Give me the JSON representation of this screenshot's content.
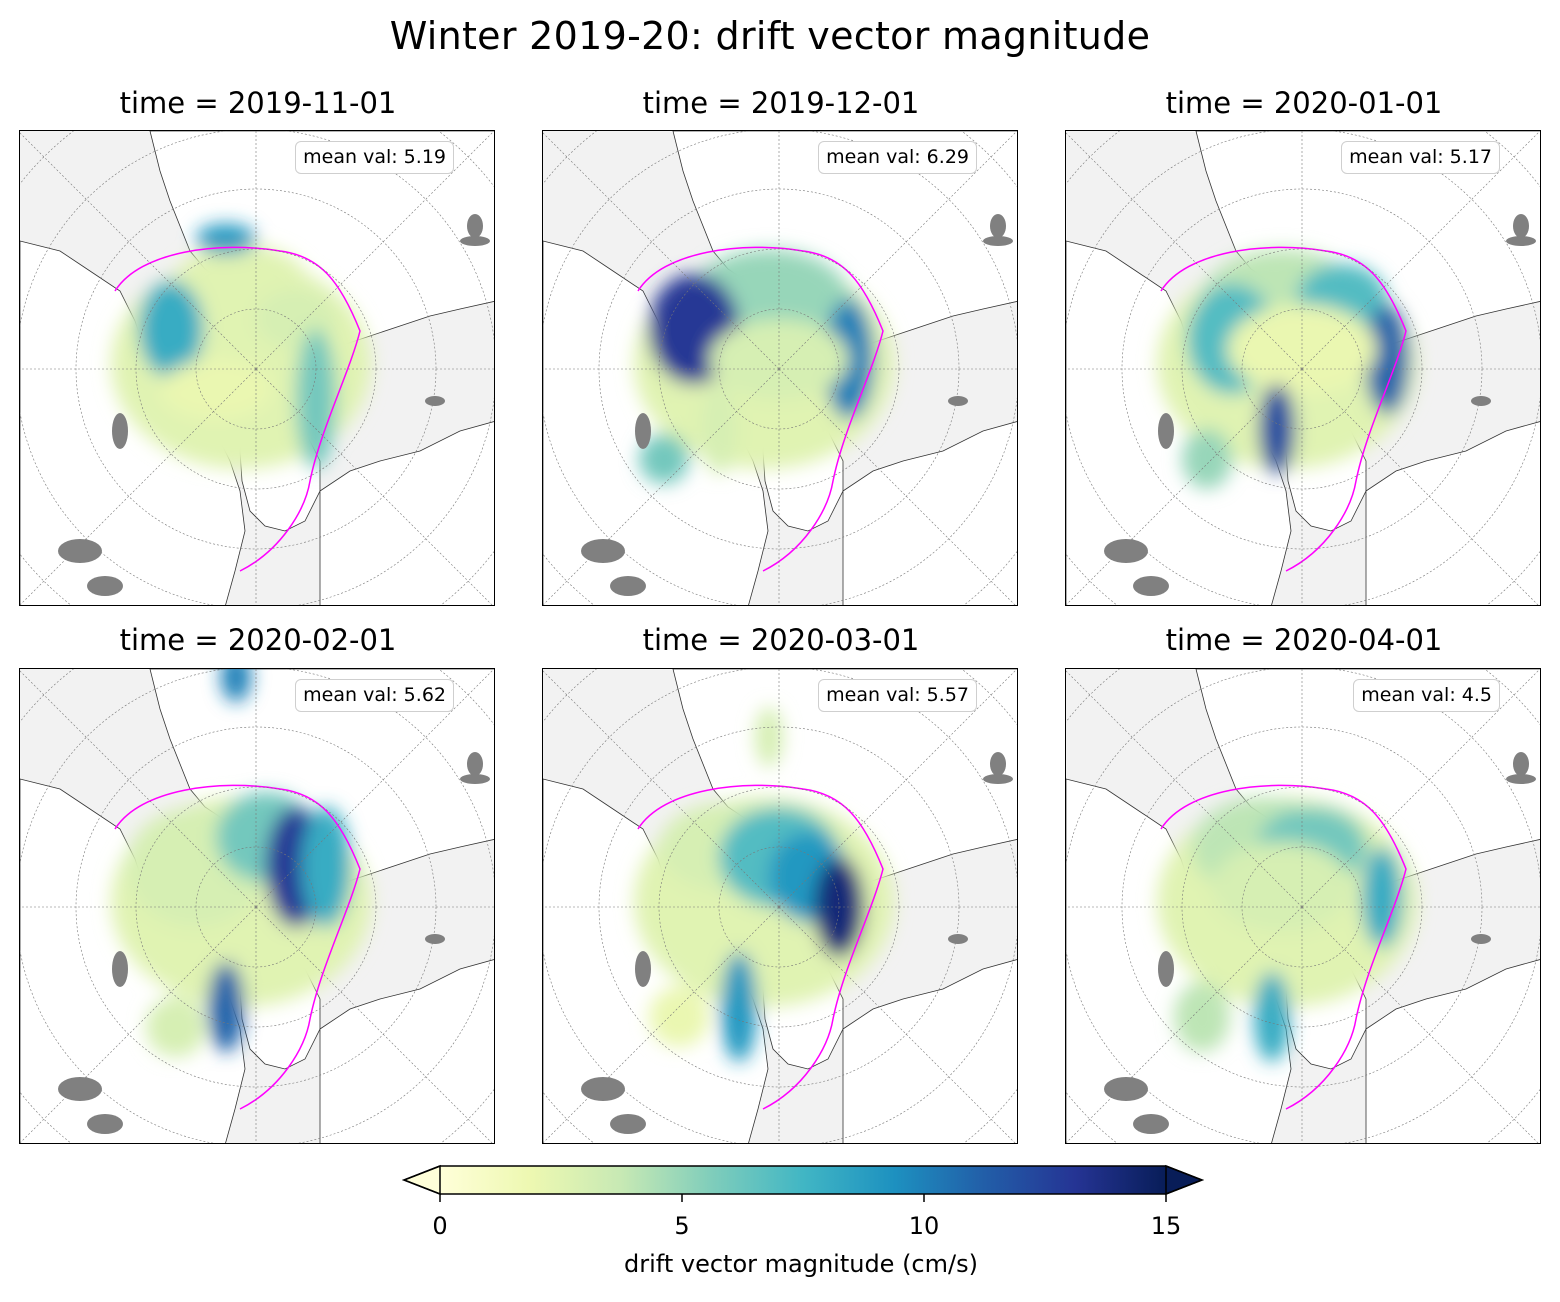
{
  "figure": {
    "title": "Winter 2019-20: drift vector magnitude"
  },
  "panels": [
    {
      "title": "time = 2019-11-01",
      "mean_label": "mean val: 5.19",
      "mean_value": 5.19
    },
    {
      "title": "time = 2019-12-01",
      "mean_label": "mean val: 6.29",
      "mean_value": 6.29
    },
    {
      "title": "time = 2020-01-01",
      "mean_label": "mean val: 5.17",
      "mean_value": 5.17
    },
    {
      "title": "time = 2020-02-01",
      "mean_label": "mean val: 5.62",
      "mean_value": 5.62
    },
    {
      "title": "time = 2020-03-01",
      "mean_label": "mean val: 5.57",
      "mean_value": 5.57
    },
    {
      "title": "time = 2020-04-01",
      "mean_label": "mean val: 4.5",
      "mean_value": 4.5
    }
  ],
  "colorbar": {
    "label": "drift vector magnitude (cm/s)",
    "ticks": [
      "0",
      "5",
      "10",
      "15"
    ],
    "range": [
      0,
      15
    ],
    "extend": "both",
    "colormap": "YlGnBu",
    "colors": [
      "#ffffd9",
      "#edf8b1",
      "#c7e9b4",
      "#7fcdbb",
      "#41b6c4",
      "#1d91c0",
      "#225ea8",
      "#253494",
      "#081d58"
    ]
  },
  "map_style": {
    "ocean_color": "#f2f2f2",
    "land_color": "#ffffff",
    "ice_edge_color": "#ff00ff",
    "glacier_color": "#808080"
  }
}
